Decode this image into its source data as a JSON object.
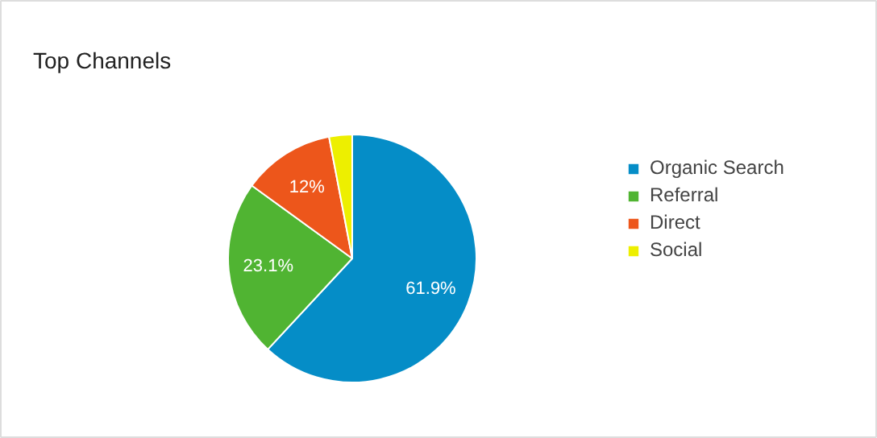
{
  "chart_data": {
    "type": "pie",
    "title": "Top Channels",
    "categories": [
      "Organic Search",
      "Referral",
      "Direct",
      "Social"
    ],
    "values": [
      61.9,
      23.1,
      12,
      3.0
    ],
    "colors": [
      "#058dc7",
      "#50b432",
      "#ed561b",
      "#edef00"
    ],
    "value_labels": [
      "61.9%",
      "23.1%",
      "12%",
      null
    ],
    "legend": "right"
  }
}
